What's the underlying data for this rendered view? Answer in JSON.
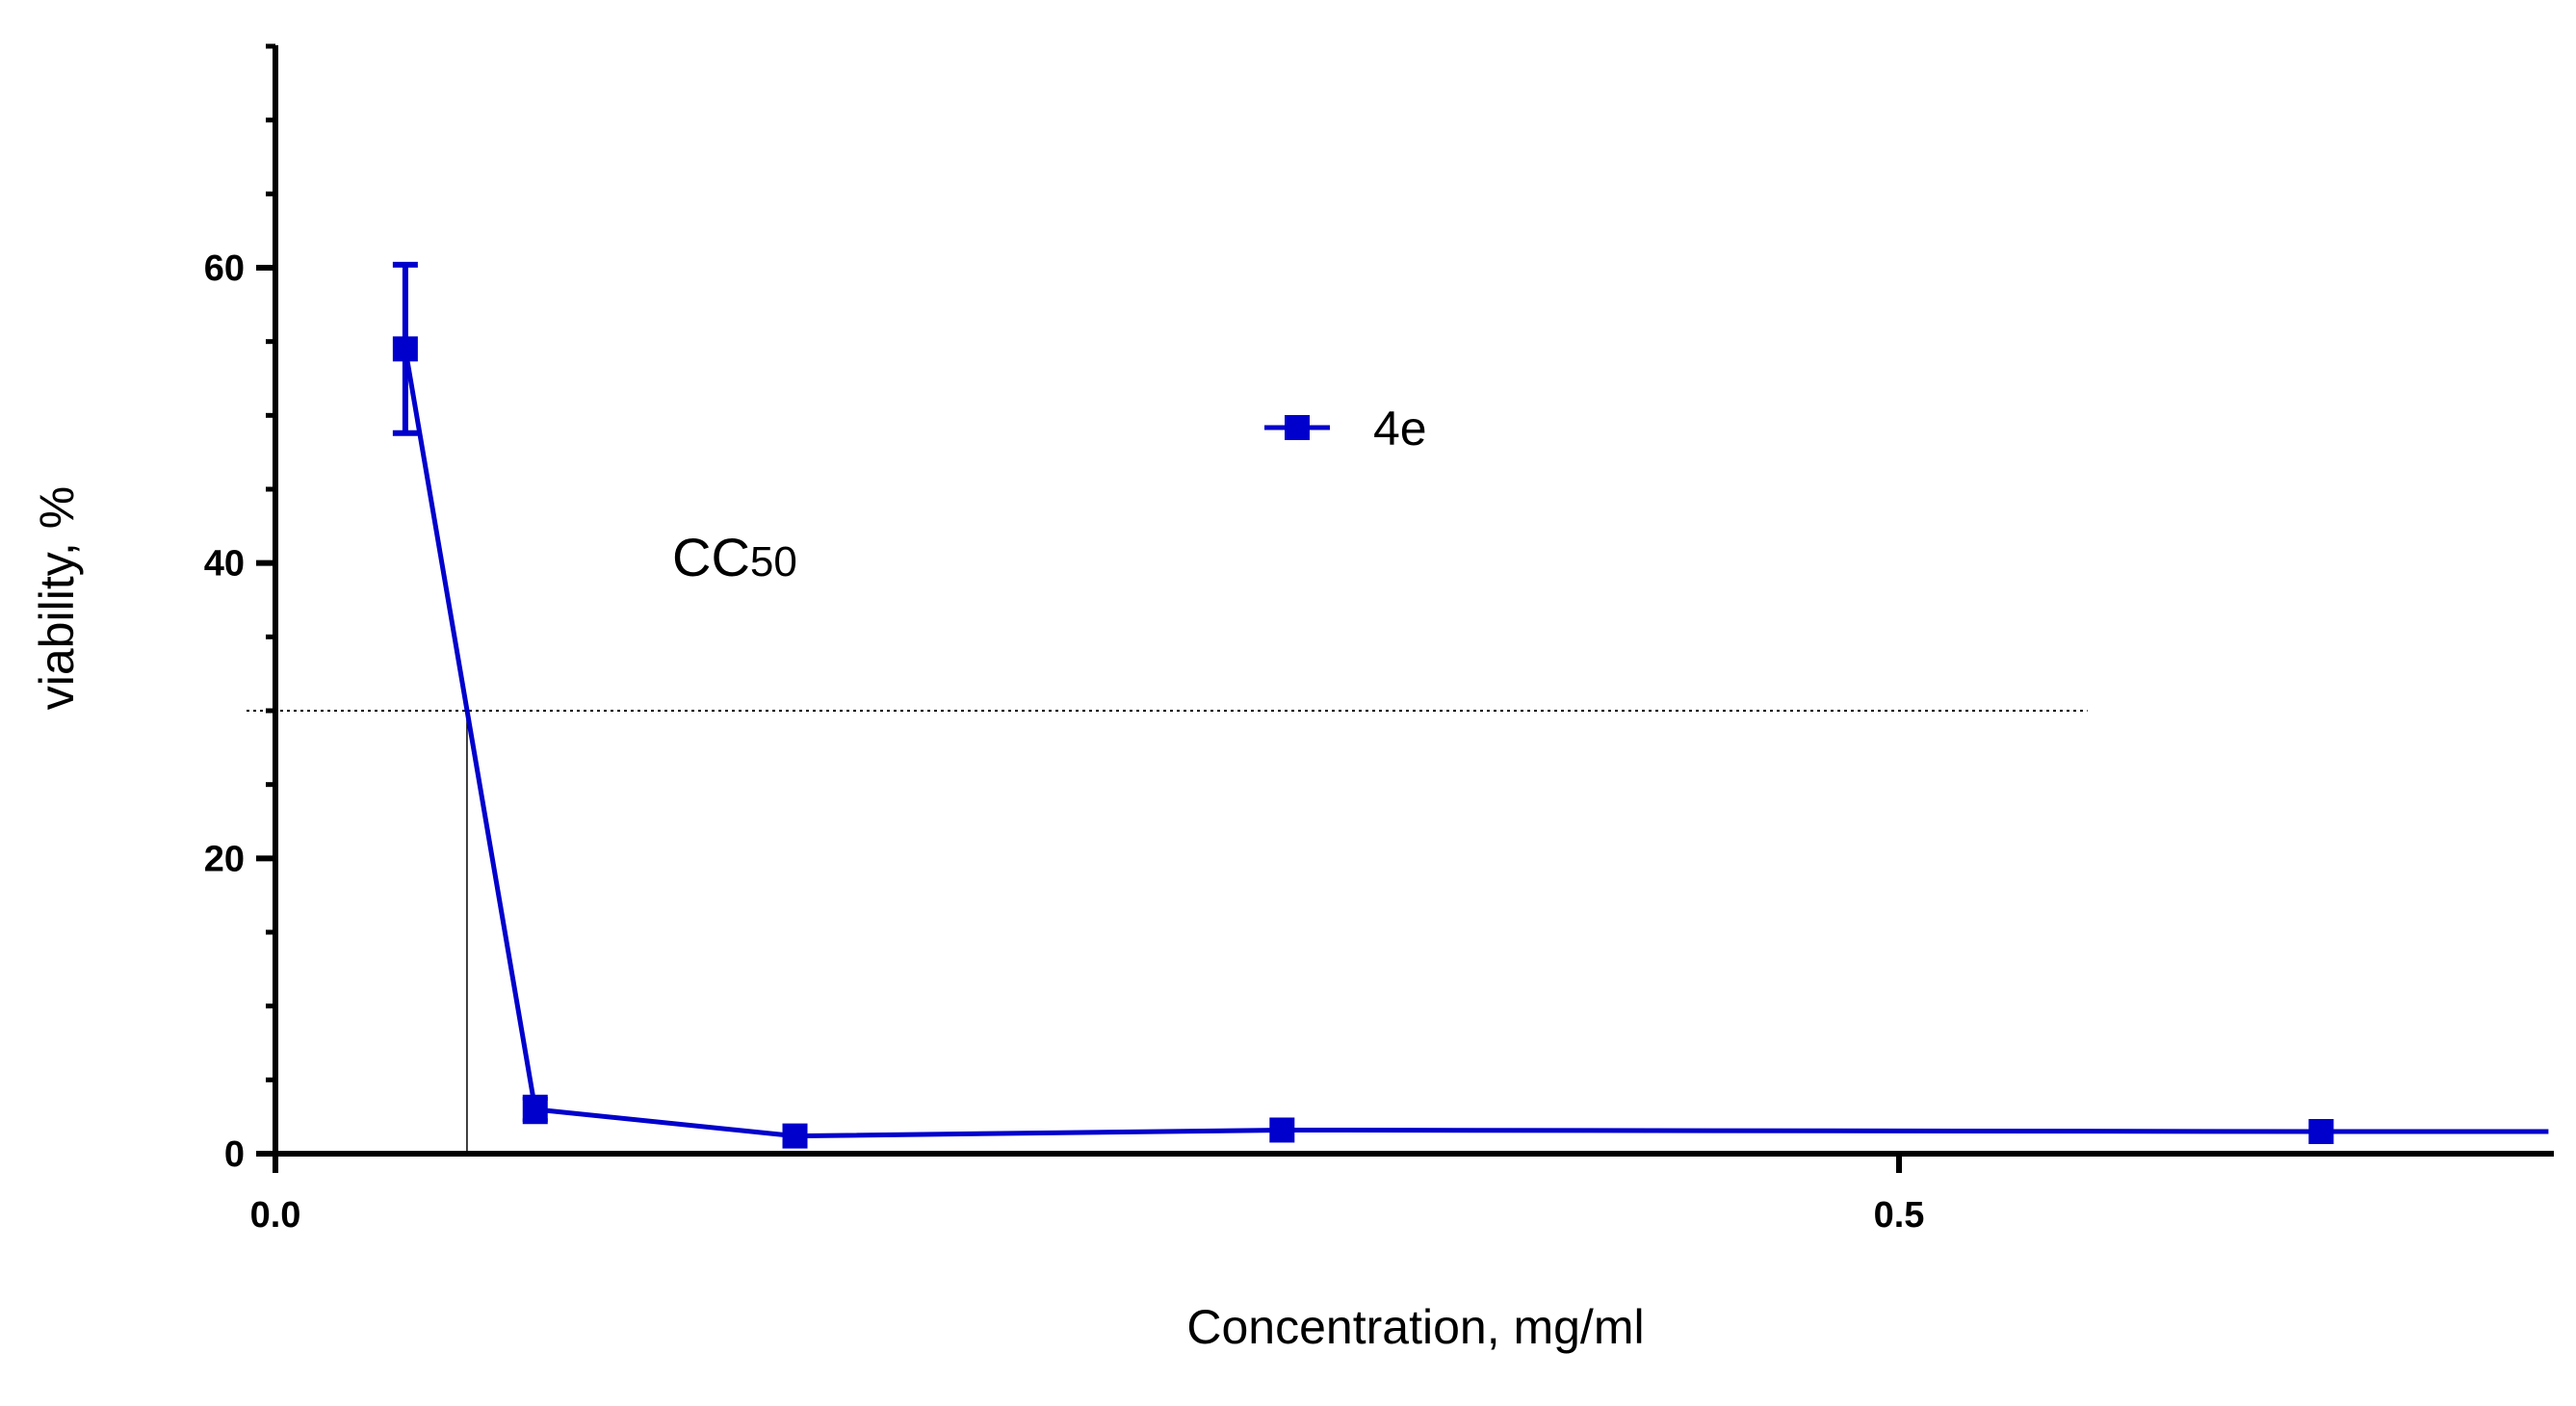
{
  "chart_data": {
    "type": "line",
    "xlabel": "Concentration, mg/ml",
    "ylabel": "viability, %",
    "xlim": [
      0.0,
      0.7
    ],
    "ylim": [
      0,
      75
    ],
    "x_ticks": [
      {
        "value": 0.0,
        "label": "0.0"
      },
      {
        "value": 0.5,
        "label": "0.5"
      }
    ],
    "y_ticks": [
      {
        "value": 0,
        "label": "0"
      },
      {
        "value": 20,
        "label": "20"
      },
      {
        "value": 40,
        "label": "40"
      },
      {
        "value": 60,
        "label": "60"
      }
    ],
    "y_minor_step": 5,
    "grid": false,
    "legend_position": "top-center",
    "series": [
      {
        "name": "4e",
        "color": "#0000CC",
        "marker": "square",
        "points": [
          {
            "x": 0.04,
            "y": 54.5,
            "err": 5.7
          },
          {
            "x": 0.08,
            "y": 3.0,
            "err": 0.8
          },
          {
            "x": 0.16,
            "y": 1.2,
            "err": 0
          },
          {
            "x": 0.31,
            "y": 1.6,
            "err": 0
          },
          {
            "x": 0.63,
            "y": 1.5,
            "err": 0
          }
        ],
        "line_end": {
          "x": 0.7,
          "y": 1.5
        }
      }
    ],
    "annotations": {
      "label_main": "CC",
      "label_sub": "50",
      "threshold_y": 30,
      "threshold_x": 0.059,
      "threshold_line_end_x": 0.558
    }
  }
}
